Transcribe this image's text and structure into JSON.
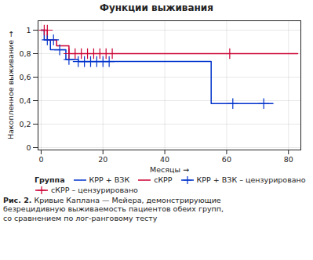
{
  "chart_data": {
    "type": "line",
    "title": "Функции выживания",
    "xlabel": "Месяцы",
    "ylabel": "Накопленное выживание",
    "xlim": [
      -1,
      84
    ],
    "ylim": [
      -0.02,
      1.08
    ],
    "xticks": [
      0,
      20,
      40,
      60,
      80
    ],
    "yticks": [
      0,
      {
        "value": 0.2,
        "label": "0,2"
      },
      {
        "value": 0.4,
        "label": "0,4"
      },
      {
        "value": 0.6,
        "label": "0,6"
      },
      {
        "value": 0.8,
        "label": "0,8"
      },
      1
    ],
    "grid": true,
    "legend_title": "Группа",
    "series": [
      {
        "name": "КРР + ВЗК",
        "color": "#0033cc",
        "type": "step",
        "x": [
          0,
          1,
          1,
          3,
          3,
          8,
          8,
          12,
          12,
          55,
          55,
          75
        ],
        "values": [
          1.0,
          1.0,
          0.917,
          0.917,
          0.833,
          0.833,
          0.75,
          0.75,
          0.733,
          0.733,
          0.375,
          0.375
        ]
      },
      {
        "name": "сКРР",
        "color": "#cc0033",
        "type": "step",
        "x": [
          0,
          2,
          2,
          5,
          5,
          9,
          9,
          83
        ],
        "values": [
          1.0,
          1.0,
          0.917,
          0.917,
          0.867,
          0.867,
          0.8,
          0.8
        ]
      },
      {
        "name": "КРР + ВЗК – цензурировано",
        "color": "#0033cc",
        "type": "scatter",
        "marker": "plus",
        "x": [
          2,
          4,
          6,
          9,
          12,
          14,
          16,
          18,
          20,
          22,
          62,
          72
        ],
        "values": [
          0.917,
          0.917,
          0.833,
          0.75,
          0.733,
          0.733,
          0.733,
          0.733,
          0.733,
          0.733,
          0.375,
          0.375
        ]
      },
      {
        "name": "сКРР – цензурировано",
        "color": "#cc0033",
        "type": "scatter",
        "marker": "plus",
        "x": [
          1,
          2,
          9,
          11,
          13,
          15,
          17,
          19,
          21,
          23,
          61
        ],
        "values": [
          1.0,
          1.0,
          0.8,
          0.8,
          0.8,
          0.8,
          0.8,
          0.8,
          0.8,
          0.8,
          0.8
        ]
      }
    ],
    "caption_label": "Рис. 2.",
    "caption": " Кривые Каплана — Мейера, демонстрирующие\nбезрецидивную выживаемость пациентов обеих групп,\nсо сравнением по лог-ранговому тесту"
  }
}
